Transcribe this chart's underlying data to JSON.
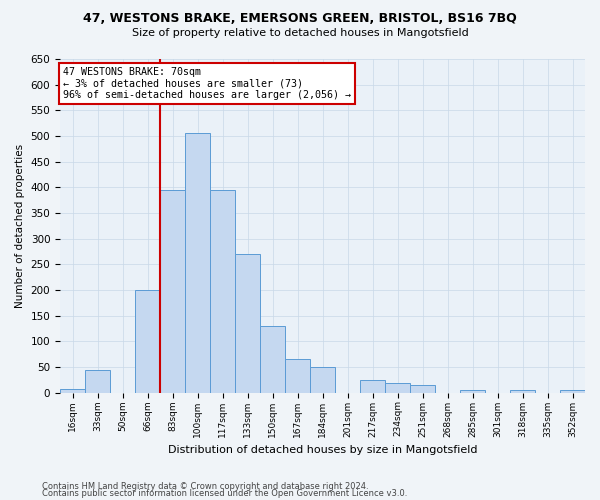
{
  "title_line1": "47, WESTONS BRAKE, EMERSONS GREEN, BRISTOL, BS16 7BQ",
  "title_line2": "Size of property relative to detached houses in Mangotsfield",
  "xlabel": "Distribution of detached houses by size in Mangotsfield",
  "ylabel": "Number of detached properties",
  "categories": [
    "16sqm",
    "33sqm",
    "50sqm",
    "66sqm",
    "83sqm",
    "100sqm",
    "117sqm",
    "133sqm",
    "150sqm",
    "167sqm",
    "184sqm",
    "201sqm",
    "217sqm",
    "234sqm",
    "251sqm",
    "268sqm",
    "285sqm",
    "301sqm",
    "318sqm",
    "335sqm",
    "352sqm"
  ],
  "bar_heights": [
    8,
    45,
    0,
    200,
    395,
    505,
    395,
    270,
    130,
    65,
    50,
    0,
    25,
    18,
    15,
    0,
    5,
    0,
    5,
    0,
    5
  ],
  "bar_color": "#c5d8f0",
  "bar_edge_color": "#5b9bd5",
  "grid_color": "#c8d8e8",
  "bg_color": "#eaf1f8",
  "vline_x_index": 4,
  "vline_color": "#cc0000",
  "annotation_text": "47 WESTONS BRAKE: 70sqm\n← 3% of detached houses are smaller (73)\n96% of semi-detached houses are larger (2,056) →",
  "annotation_box_color": "#ffffff",
  "annotation_box_edge": "#cc0000",
  "ylim": [
    0,
    650
  ],
  "yticks": [
    0,
    50,
    100,
    150,
    200,
    250,
    300,
    350,
    400,
    450,
    500,
    550,
    600,
    650
  ],
  "fig_bg": "#f0f4f8",
  "footer_line1": "Contains HM Land Registry data © Crown copyright and database right 2024.",
  "footer_line2": "Contains public sector information licensed under the Open Government Licence v3.0."
}
